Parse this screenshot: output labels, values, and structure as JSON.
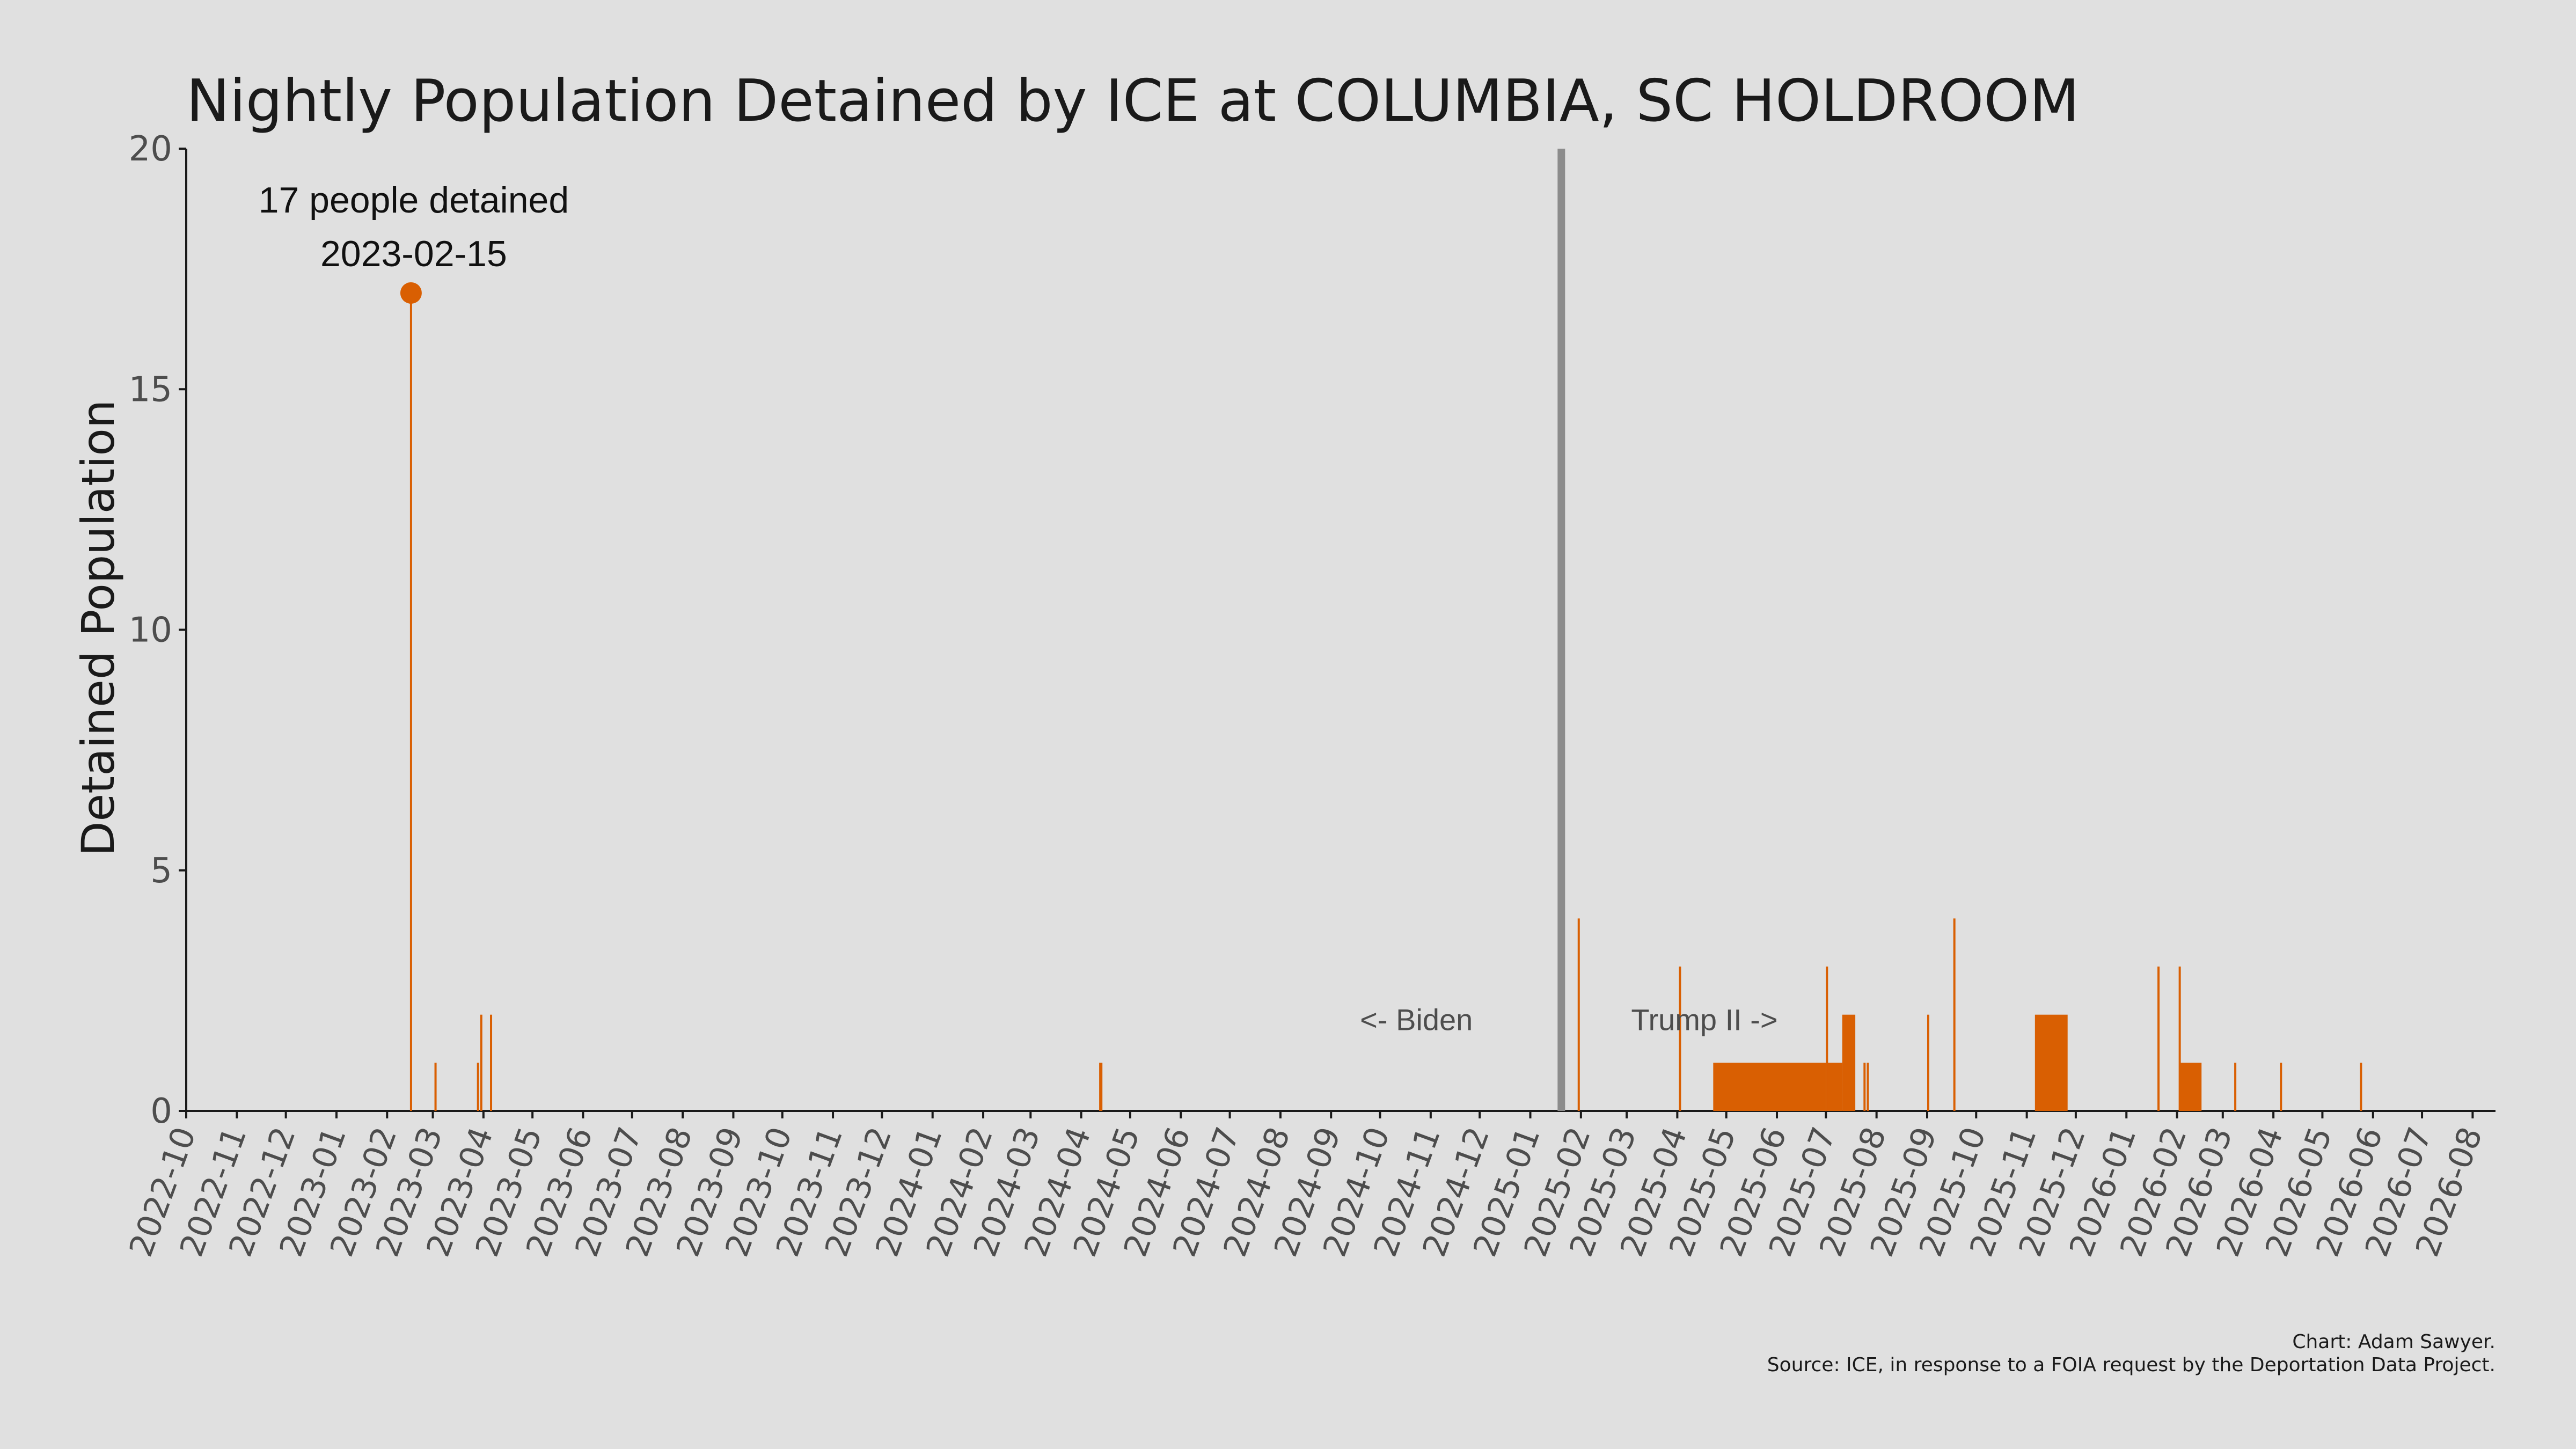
{
  "chart_data": {
    "type": "bar",
    "title": "Nightly Population Detained by ICE at COLUMBIA, SC HOLDROOM",
    "ylabel": "Detained Population",
    "xlabel": "",
    "ylim": [
      0,
      20
    ],
    "xlim": [
      "2022-10-01",
      "2026-08-15"
    ],
    "yticks": [
      0,
      5,
      10,
      15,
      20
    ],
    "xticks": [
      "2022-10",
      "2022-11",
      "2022-12",
      "2023-01",
      "2023-02",
      "2023-03",
      "2023-04",
      "2023-05",
      "2023-06",
      "2023-07",
      "2023-08",
      "2023-09",
      "2023-10",
      "2023-11",
      "2023-12",
      "2024-01",
      "2024-02",
      "2024-03",
      "2024-04",
      "2024-05",
      "2024-06",
      "2024-07",
      "2024-08",
      "2024-09",
      "2024-10",
      "2024-11",
      "2024-12",
      "2025-01",
      "2025-02",
      "2025-03",
      "2025-04",
      "2025-05",
      "2025-06",
      "2025-07",
      "2025-08",
      "2025-09",
      "2025-10",
      "2025-11",
      "2025-12",
      "2026-01",
      "2026-02",
      "2026-03",
      "2026-04",
      "2026-05",
      "2026-06",
      "2026-07",
      "2026-08"
    ],
    "grid": false,
    "bar_color": "#d95f02",
    "series": [
      {
        "values": [
          {
            "start": "2023-02-15",
            "end": "2023-02-15",
            "y": 17
          },
          {
            "start": "2023-03-02",
            "end": "2023-03-02",
            "y": 1
          },
          {
            "start": "2023-03-28",
            "end": "2023-03-28",
            "y": 1
          },
          {
            "start": "2023-03-30",
            "end": "2023-03-30",
            "y": 2
          },
          {
            "start": "2023-04-05",
            "end": "2023-04-05",
            "y": 2
          },
          {
            "start": "2024-04-12",
            "end": "2024-04-13",
            "y": 1
          },
          {
            "start": "2025-01-30",
            "end": "2025-01-30",
            "y": 4
          },
          {
            "start": "2025-04-02",
            "end": "2025-04-02",
            "y": 3
          },
          {
            "start": "2025-04-23",
            "end": "2025-06-30",
            "y": 1
          },
          {
            "start": "2025-07-01",
            "end": "2025-07-01",
            "y": 3
          },
          {
            "start": "2025-07-02",
            "end": "2025-07-10",
            "y": 1
          },
          {
            "start": "2025-07-11",
            "end": "2025-07-18",
            "y": 2
          },
          {
            "start": "2025-07-24",
            "end": "2025-07-24",
            "y": 1
          },
          {
            "start": "2025-07-26",
            "end": "2025-07-26",
            "y": 1
          },
          {
            "start": "2025-09-01",
            "end": "2025-09-01",
            "y": 2
          },
          {
            "start": "2025-09-17",
            "end": "2025-09-17",
            "y": 4
          },
          {
            "start": "2025-11-06",
            "end": "2025-11-25",
            "y": 2
          },
          {
            "start": "2026-01-20",
            "end": "2026-01-20",
            "y": 3
          },
          {
            "start": "2026-02-02",
            "end": "2026-02-02",
            "y": 3
          },
          {
            "start": "2026-02-03",
            "end": "2026-02-15",
            "y": 1
          },
          {
            "start": "2026-03-08",
            "end": "2026-03-08",
            "y": 1
          },
          {
            "start": "2026-04-05",
            "end": "2026-04-05",
            "y": 1
          },
          {
            "start": "2026-05-24",
            "end": "2026-05-24",
            "y": 1
          }
        ]
      }
    ],
    "vline": {
      "date": "2025-01-20",
      "color": "#8c8c8c"
    },
    "peak": {
      "date": "2023-02-15",
      "value": 17,
      "label_line1": "17 people detained",
      "label_line2": "2023-02-15"
    },
    "era_labels": {
      "left": "<- Biden",
      "right": "Trump II ->"
    }
  },
  "caption": {
    "line1": "Chart: Adam Sawyer.",
    "line2": "Source: ICE, in response to a FOIA request by the Deportation Data Project."
  }
}
